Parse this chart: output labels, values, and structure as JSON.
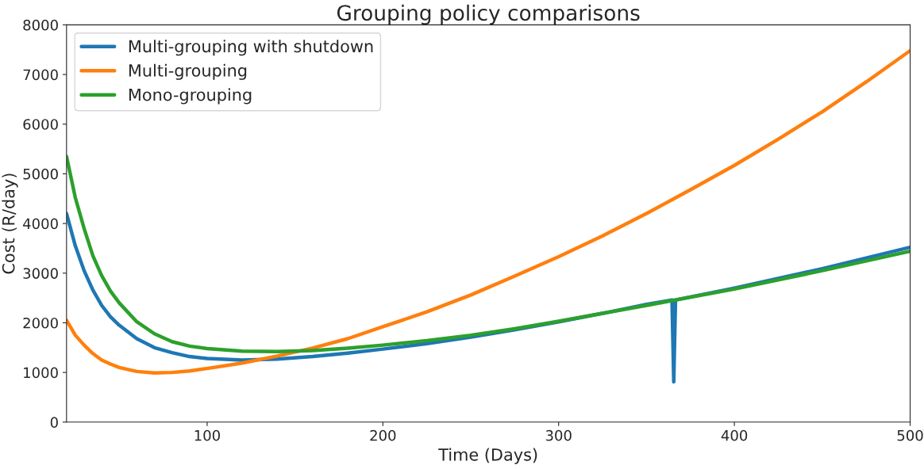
{
  "chart_data": {
    "type": "line",
    "title": "Grouping policy comparisons",
    "xlabel": "Time (Days)",
    "ylabel": "Cost (R/day)",
    "xlim": [
      20,
      500
    ],
    "xticks": [
      100,
      200,
      300,
      400,
      500
    ],
    "ylim": [
      0,
      8000
    ],
    "yticks": [
      0,
      1000,
      2000,
      3000,
      4000,
      5000,
      6000,
      7000,
      8000
    ],
    "grid": false,
    "legend": "top left",
    "series": [
      {
        "name": "Multi-grouping with shutdown",
        "color": "#1f77b4",
        "x": [
          20,
          25,
          30,
          35,
          40,
          45,
          50,
          60,
          70,
          80,
          90,
          100,
          120,
          140,
          160,
          180,
          200,
          225,
          250,
          275,
          300,
          325,
          350,
          364.5,
          365.5,
          366.5,
          400,
          450,
          500
        ],
        "values": [
          4200,
          3550,
          3050,
          2660,
          2350,
          2120,
          1950,
          1680,
          1500,
          1400,
          1320,
          1280,
          1250,
          1270,
          1320,
          1390,
          1470,
          1580,
          1710,
          1860,
          2020,
          2190,
          2370,
          2460,
          810,
          2460,
          2700,
          3090,
          3520
        ]
      },
      {
        "name": "Multi-grouping",
        "color": "#ff7f0e",
        "x": [
          20,
          25,
          30,
          35,
          40,
          45,
          50,
          60,
          70,
          80,
          90,
          100,
          120,
          140,
          160,
          180,
          200,
          225,
          250,
          275,
          300,
          325,
          350,
          375,
          400,
          425,
          450,
          475,
          500
        ],
        "values": [
          2050,
          1750,
          1550,
          1380,
          1250,
          1170,
          1100,
          1020,
          990,
          1000,
          1030,
          1080,
          1190,
          1330,
          1490,
          1680,
          1920,
          2220,
          2560,
          2940,
          3330,
          3750,
          4200,
          4680,
          5170,
          5700,
          6250,
          6850,
          7480
        ]
      },
      {
        "name": "Mono-grouping",
        "color": "#2ca02c",
        "x": [
          20,
          25,
          30,
          35,
          40,
          45,
          50,
          60,
          70,
          80,
          90,
          100,
          120,
          140,
          160,
          180,
          200,
          225,
          250,
          275,
          300,
          325,
          350,
          365,
          400,
          450,
          500
        ],
        "values": [
          5350,
          4520,
          3900,
          3350,
          2950,
          2640,
          2400,
          2020,
          1780,
          1620,
          1530,
          1480,
          1430,
          1420,
          1440,
          1490,
          1550,
          1640,
          1750,
          1880,
          2030,
          2190,
          2350,
          2450,
          2680,
          3050,
          3440
        ]
      }
    ]
  }
}
